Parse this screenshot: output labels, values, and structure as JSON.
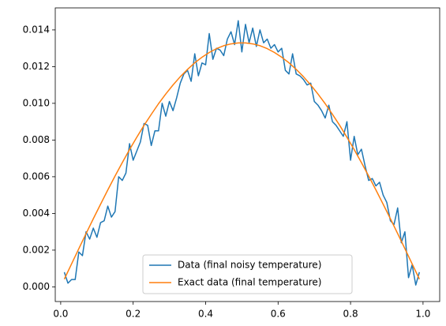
{
  "chart_data": {
    "type": "line",
    "series": [
      {
        "name": "Data (final noisy temperature)",
        "color": "#1f77b4",
        "x": [
          0.01,
          0.02,
          0.03,
          0.04,
          0.05,
          0.06,
          0.07,
          0.08,
          0.09,
          0.1,
          0.11,
          0.12,
          0.13,
          0.14,
          0.15,
          0.16,
          0.17,
          0.18,
          0.19,
          0.2,
          0.21,
          0.22,
          0.23,
          0.24,
          0.25,
          0.26,
          0.27,
          0.28,
          0.29,
          0.3,
          0.31,
          0.32,
          0.33,
          0.34,
          0.35,
          0.36,
          0.37,
          0.38,
          0.39,
          0.4,
          0.41,
          0.42,
          0.43,
          0.44,
          0.45,
          0.46,
          0.47,
          0.48,
          0.49,
          0.5,
          0.51,
          0.52,
          0.53,
          0.54,
          0.55,
          0.56,
          0.57,
          0.58,
          0.59,
          0.6,
          0.61,
          0.62,
          0.63,
          0.64,
          0.65,
          0.66,
          0.67,
          0.68,
          0.69,
          0.7,
          0.71,
          0.72,
          0.73,
          0.74,
          0.75,
          0.76,
          0.77,
          0.78,
          0.79,
          0.8,
          0.81,
          0.82,
          0.83,
          0.84,
          0.85,
          0.86,
          0.87,
          0.88,
          0.89,
          0.9,
          0.91,
          0.92,
          0.93,
          0.94,
          0.95,
          0.96,
          0.97,
          0.98,
          0.99
        ],
        "values": [
          0.0008,
          0.0002,
          0.0004,
          0.0004,
          0.0019,
          0.0017,
          0.003,
          0.0026,
          0.0032,
          0.0027,
          0.0035,
          0.0036,
          0.0044,
          0.0038,
          0.0041,
          0.006,
          0.0058,
          0.0062,
          0.0078,
          0.0069,
          0.0074,
          0.0079,
          0.0089,
          0.0088,
          0.0077,
          0.0085,
          0.0085,
          0.01,
          0.0093,
          0.0101,
          0.0096,
          0.0103,
          0.0111,
          0.0116,
          0.0118,
          0.0112,
          0.0127,
          0.0115,
          0.0122,
          0.0121,
          0.0138,
          0.0124,
          0.013,
          0.0129,
          0.0126,
          0.0135,
          0.0139,
          0.0132,
          0.0145,
          0.0128,
          0.0143,
          0.0133,
          0.0141,
          0.0131,
          0.014,
          0.0133,
          0.0135,
          0.013,
          0.0132,
          0.0128,
          0.013,
          0.0118,
          0.0116,
          0.0127,
          0.0116,
          0.0115,
          0.0113,
          0.011,
          0.0111,
          0.0101,
          0.0099,
          0.0096,
          0.0092,
          0.0099,
          0.009,
          0.0088,
          0.0085,
          0.0082,
          0.009,
          0.0069,
          0.0082,
          0.0072,
          0.0075,
          0.0066,
          0.0058,
          0.0059,
          0.0055,
          0.0057,
          0.005,
          0.0046,
          0.0036,
          0.0034,
          0.0043,
          0.0024,
          0.003,
          0.0005,
          0.0012,
          0.0001,
          0.0008
        ]
      },
      {
        "name": "Exact data (final temperature)",
        "color": "#ff7f0e",
        "x": [
          0.01,
          0.03,
          0.05,
          0.07,
          0.09,
          0.11,
          0.13,
          0.15,
          0.17,
          0.19,
          0.21,
          0.23,
          0.25,
          0.27,
          0.29,
          0.31,
          0.33,
          0.35,
          0.37,
          0.39,
          0.41,
          0.43,
          0.45,
          0.47,
          0.49,
          0.51,
          0.53,
          0.55,
          0.57,
          0.59,
          0.61,
          0.63,
          0.65,
          0.67,
          0.69,
          0.71,
          0.73,
          0.75,
          0.77,
          0.79,
          0.81,
          0.83,
          0.85,
          0.87,
          0.89,
          0.91,
          0.93,
          0.95,
          0.97,
          0.99
        ],
        "values": [
          0.00042,
          0.00125,
          0.00208,
          0.0029,
          0.00371,
          0.0045,
          0.00528,
          0.00604,
          0.00677,
          0.00748,
          0.00815,
          0.0088,
          0.0094,
          0.00998,
          0.01051,
          0.011,
          0.01145,
          0.01185,
          0.01221,
          0.01251,
          0.01277,
          0.01298,
          0.01314,
          0.01324,
          0.01329,
          0.01329,
          0.01324,
          0.01314,
          0.01298,
          0.01277,
          0.01251,
          0.01221,
          0.01185,
          0.01145,
          0.011,
          0.01051,
          0.00998,
          0.0094,
          0.0088,
          0.00815,
          0.00748,
          0.00677,
          0.00604,
          0.00528,
          0.0045,
          0.00371,
          0.0029,
          0.00208,
          0.00125,
          0.00042
        ]
      }
    ],
    "xlim": [
      -0.015,
      1.046
    ],
    "ylim": [
      -0.0008,
      0.0152
    ],
    "xticks": [
      {
        "value": 0,
        "label": "0.0"
      },
      0.2,
      0.4,
      0.6,
      0.8,
      {
        "value": 1,
        "label": "1.0"
      }
    ],
    "yticks": [
      {
        "value": 0,
        "label": "0.000"
      },
      0.002,
      0.004,
      0.006,
      0.008,
      {
        "value": 0.01,
        "label": "0.010"
      },
      0.012,
      0.014
    ],
    "grid": false,
    "legend": "lower center"
  }
}
